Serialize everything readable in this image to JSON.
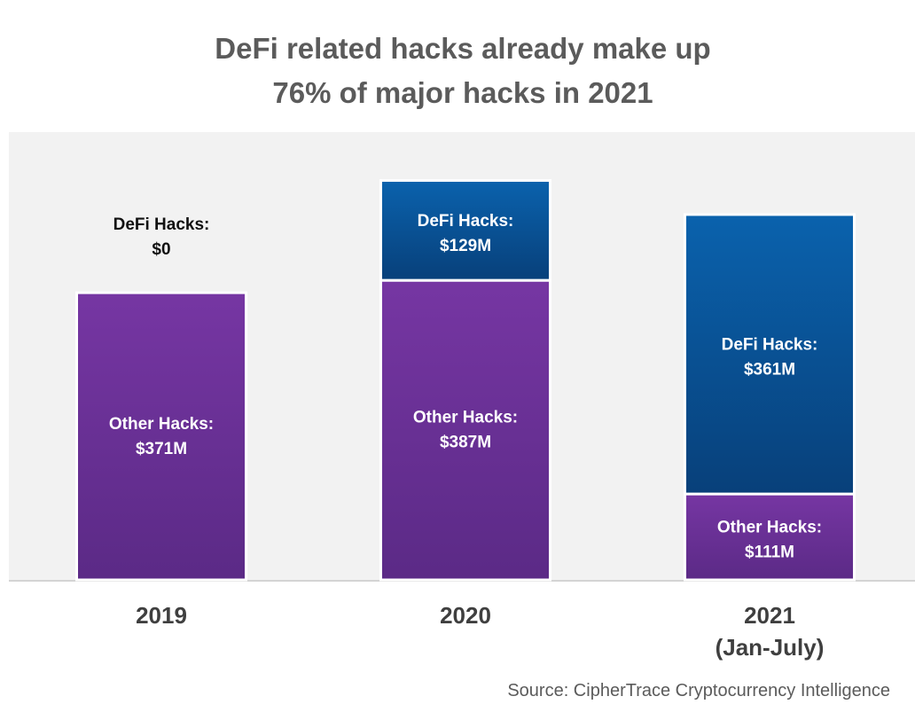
{
  "chart_data": {
    "type": "bar",
    "stacked": true,
    "title_lines": [
      "DeFi related hacks already make up",
      "76% of major hacks in 2021"
    ],
    "categories": [
      [
        "2019"
      ],
      [
        "2020"
      ],
      [
        "2021",
        "(Jan-July)"
      ]
    ],
    "series": [
      {
        "name": "Other Hacks",
        "values": [
          371,
          387,
          111
        ],
        "labels": [
          [
            "Other Hacks:",
            "$371M"
          ],
          [
            "Other Hacks:",
            "$387M"
          ],
          [
            "Other Hacks:",
            "$111M"
          ]
        ]
      },
      {
        "name": "DeFi Hacks",
        "values": [
          0,
          129,
          361
        ],
        "labels": [
          [
            "DeFi Hacks:",
            "$0"
          ],
          [
            "DeFi Hacks:",
            "$129M"
          ],
          [
            "DeFi Hacks:",
            "$361M"
          ]
        ]
      }
    ],
    "ylim": [
      0,
      530
    ],
    "grid": false,
    "legend": "none",
    "colors": {
      "other_top": "#7636a3",
      "other_bottom": "#5b2a86",
      "defi_top": "#0a62ad",
      "defi_bottom": "#08407a",
      "plot_background": "#f2f2f2",
      "axis_line": "#d4d4d4"
    }
  },
  "source": "Source: CipherTrace Cryptocurrency Intelligence"
}
